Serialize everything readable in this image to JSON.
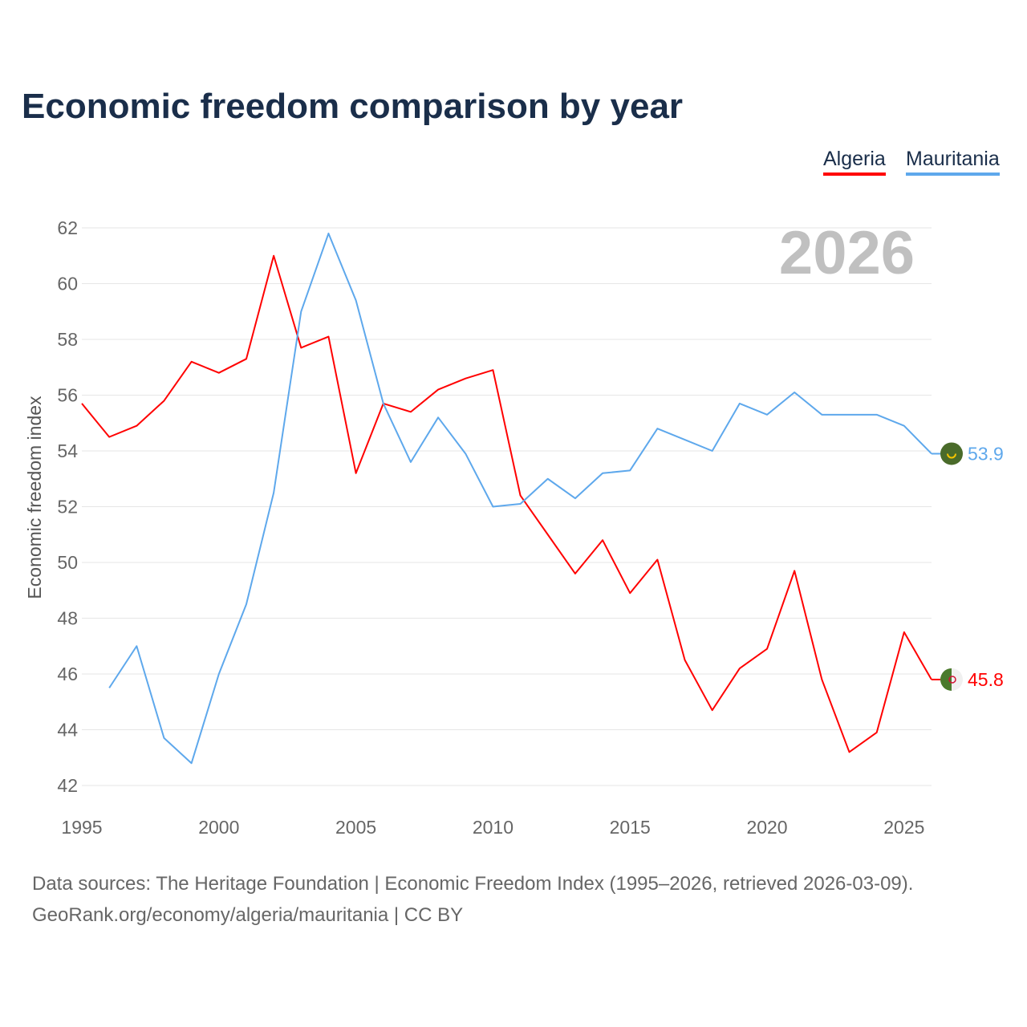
{
  "chart_data": {
    "type": "line",
    "title": "Economic freedom comparison by year",
    "xlabel": "",
    "ylabel": "Economic freedom index",
    "xlim": [
      1995,
      2026
    ],
    "ylim": [
      42,
      62
    ],
    "yticks": [
      42,
      44,
      46,
      48,
      50,
      52,
      54,
      56,
      58,
      60,
      62
    ],
    "xticks": [
      1995,
      2000,
      2005,
      2010,
      2015,
      2020,
      2025
    ],
    "year_label": "2026",
    "legend_position": "top-right",
    "grid": true,
    "series": [
      {
        "name": "Algeria",
        "color": "#ff0000",
        "end_label": "45.8",
        "x": [
          1995,
          1996,
          1997,
          1998,
          1999,
          2000,
          2001,
          2002,
          2003,
          2004,
          2005,
          2006,
          2007,
          2008,
          2009,
          2010,
          2011,
          2012,
          2013,
          2014,
          2015,
          2016,
          2017,
          2018,
          2019,
          2020,
          2021,
          2022,
          2023,
          2024,
          2025,
          2026
        ],
        "values": [
          55.7,
          54.5,
          54.9,
          55.8,
          57.2,
          56.8,
          57.3,
          61.0,
          57.7,
          58.1,
          53.2,
          55.7,
          55.4,
          56.2,
          56.6,
          56.9,
          52.4,
          51.0,
          49.6,
          50.8,
          48.9,
          50.1,
          46.5,
          44.7,
          46.2,
          46.9,
          49.7,
          45.8,
          43.2,
          43.9,
          47.5,
          45.8
        ]
      },
      {
        "name": "Mauritania",
        "color": "#5ea8ec",
        "end_label": "53.9",
        "x": [
          1996,
          1997,
          1998,
          1999,
          2000,
          2001,
          2002,
          2003,
          2004,
          2005,
          2006,
          2007,
          2008,
          2009,
          2010,
          2011,
          2012,
          2013,
          2014,
          2015,
          2016,
          2017,
          2018,
          2019,
          2020,
          2021,
          2022,
          2023,
          2024,
          2025,
          2026
        ],
        "values": [
          45.5,
          47.0,
          43.7,
          42.8,
          46.0,
          48.5,
          52.5,
          59.0,
          61.8,
          59.4,
          55.7,
          53.6,
          55.2,
          53.9,
          52.0,
          52.1,
          53.0,
          52.3,
          53.2,
          53.3,
          54.8,
          54.4,
          54.0,
          55.7,
          55.3,
          56.1,
          55.3,
          55.3,
          55.3,
          54.9,
          53.9
        ]
      }
    ]
  },
  "footer": {
    "line1": "Data sources: The Heritage Foundation | Economic Freedom Index (1995–2026, retrieved 2026-03-09).",
    "line2": "GeoRank.org/economy/algeria/mauritania | CC BY"
  }
}
